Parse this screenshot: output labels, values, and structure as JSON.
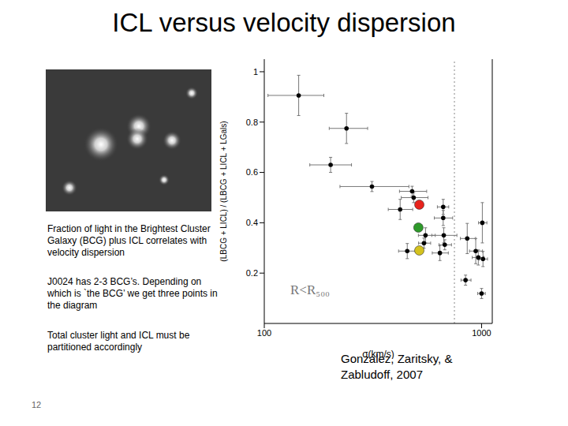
{
  "slide": {
    "title": "ICL versus velocity dispersion",
    "paragraphs": [
      "Fraction of light in the Brightest Cluster Galaxy (BCG) plus ICL correlates with velocity dispersion",
      "J0024 has 2-3 BCG’s. Depending on which is `the BCG’ we get three points in the diagram",
      "Total cluster light and ICL must be partitioned accordingly"
    ],
    "citation": "Gonzalez, Zaritsky, & Zabludoff, 2007",
    "slide_number": 12
  },
  "chart_data": {
    "type": "scatter",
    "x_label": "σ(km/s)",
    "y_label": "(LBCG + LICL) / (LBCG + LICL + LGals)",
    "annotations": [
      "R<R₅₀₀"
    ],
    "log": "x",
    "xlim": [
      100,
      1120
    ],
    "xticks": [
      100,
      1000
    ],
    "ylim": [
      0,
      1.05
    ],
    "yticks": [
      0.2,
      0.4,
      0.6,
      0.8,
      1
    ],
    "vertical_line": 750,
    "series": [
      {
        "color": "#000000",
        "marker": "circle",
        "x": [
          144,
          239,
          202,
          313,
          479,
          487,
          422,
          666,
          666,
          1008,
          552,
          670,
          543,
          677,
          859,
          643,
          455,
          940,
          966,
          1015,
          844,
          1000
        ],
        "values": [
          0.906,
          0.775,
          0.63,
          0.544,
          0.525,
          0.5,
          0.453,
          0.463,
          0.419,
          0.4,
          0.35,
          0.35,
          0.319,
          0.3125,
          0.3375,
          0.28,
          0.2875,
          0.2875,
          0.262,
          0.256,
          0.172,
          0.119
        ],
        "x_err": [
          [
            40,
            44
          ],
          [
            40,
            60
          ],
          [
            40,
            50
          ],
          [
            90,
            150
          ],
          [
            60,
            80
          ],
          [
            60,
            80
          ],
          [
            50,
            60
          ],
          [
            40,
            40
          ],
          [
            60,
            70
          ],
          [
            40,
            50
          ],
          [
            40,
            60
          ],
          [
            80,
            100
          ],
          [
            30,
            40
          ],
          [
            40,
            50
          ],
          [
            60,
            80
          ],
          [
            50,
            60
          ],
          [
            40,
            40
          ],
          [
            60,
            70
          ],
          [
            60,
            60
          ],
          [
            40,
            50
          ],
          [
            40,
            50
          ],
          [
            40,
            40
          ]
        ],
        "y_err": [
          [
            0.08,
            0.08
          ],
          [
            0.06,
            0.06
          ],
          [
            0.03,
            0.03
          ],
          [
            0.02,
            0.02
          ],
          [
            0.02,
            0.02
          ],
          [
            0.02,
            0.02
          ],
          [
            0.04,
            0.04
          ],
          [
            0.03,
            0.03
          ],
          [
            0.03,
            0.03
          ],
          [
            0.08,
            0.08
          ],
          [
            0.03,
            0.03
          ],
          [
            0.03,
            0.03
          ],
          [
            0.02,
            0.02
          ],
          [
            0.02,
            0.02
          ],
          [
            0.06,
            0.06
          ],
          [
            0.03,
            0.03
          ],
          [
            0.03,
            0.03
          ],
          [
            0.05,
            0.05
          ],
          [
            0.03,
            0.03
          ],
          [
            0.03,
            0.03
          ],
          [
            0.02,
            0.02
          ],
          [
            0.02,
            0.02
          ]
        ]
      },
      {
        "color": "#e8231c",
        "marker": "circle",
        "x": [
          517
        ],
        "values": [
          0.472
        ]
      },
      {
        "color": "#2e9a2a",
        "marker": "circle",
        "x": [
          512
        ],
        "values": [
          0.381
        ]
      },
      {
        "color": "#d4c21e",
        "marker": "circle",
        "x": [
          517
        ],
        "values": [
          0.29
        ]
      }
    ]
  }
}
